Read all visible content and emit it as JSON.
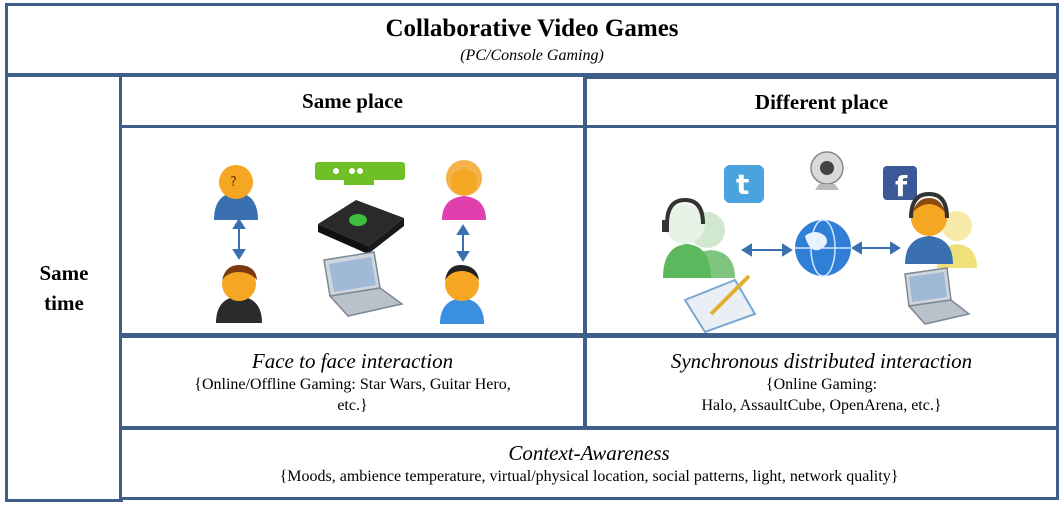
{
  "title": "Collaborative Video Games",
  "subtitle": "(PC/Console Gaming)",
  "row_header": {
    "line1": "Same",
    "line2": "time"
  },
  "columns": [
    {
      "header": "Same place",
      "caption": "Face to face interaction",
      "detail_line1": "{Online/Offline Gaming: Star Wars, Guitar Hero,",
      "detail_line2": "etc.}",
      "icons": [
        "user-male-icon",
        "user-brown-hair-icon",
        "kinect-sensor-icon",
        "game-console-icon",
        "laptop-icon",
        "user-female-icon",
        "user-black-hair-icon",
        "double-arrow-icon"
      ]
    },
    {
      "header": "Different place",
      "caption": "Synchronous distributed interaction",
      "detail_line1": "{Online Gaming:",
      "detail_line2": "Halo, AssaultCube, OpenArena,  etc.}",
      "icons": [
        "headset-users-icon",
        "twitter-icon",
        "webcam-icon",
        "facebook-icon",
        "globe-icon",
        "tablet-pen-icon",
        "laptop-icon",
        "headset-user-icon",
        "double-arrow-icon"
      ]
    }
  ],
  "context": {
    "title": "Context-Awareness",
    "detail": "{Moods, ambience  temperature, virtual/physical location, social patterns,  light, network quality}"
  },
  "colors": {
    "border": "#3f5f8a"
  }
}
